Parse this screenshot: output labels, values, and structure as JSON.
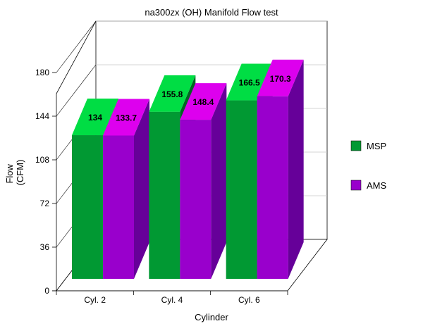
{
  "chart_data": {
    "type": "bar",
    "title": "na300zx (OH) Manifold Flow test",
    "xlabel": "Cylinder",
    "ylabel": [
      "Flow",
      "(CFM)"
    ],
    "categories": [
      "Cyl. 2",
      "Cyl. 4",
      "Cyl. 6"
    ],
    "series": [
      {
        "name": "MSP",
        "values": [
          134,
          155.8,
          166.5
        ]
      },
      {
        "name": "AMS",
        "values": [
          133.7,
          148.4,
          170.3
        ]
      }
    ],
    "ylim": [
      0,
      180
    ],
    "yticks": [
      0,
      36,
      72,
      108,
      144,
      180
    ],
    "grid": true,
    "legend": "right",
    "colors": {
      "MSP": {
        "front": "#019933",
        "top": "#00dd44",
        "side": "#016622"
      },
      "AMS": {
        "front": "#9900cc",
        "top": "#dd00ee",
        "side": "#660099"
      },
      "grid": "#c8c8c8",
      "axis": "#000000"
    }
  }
}
